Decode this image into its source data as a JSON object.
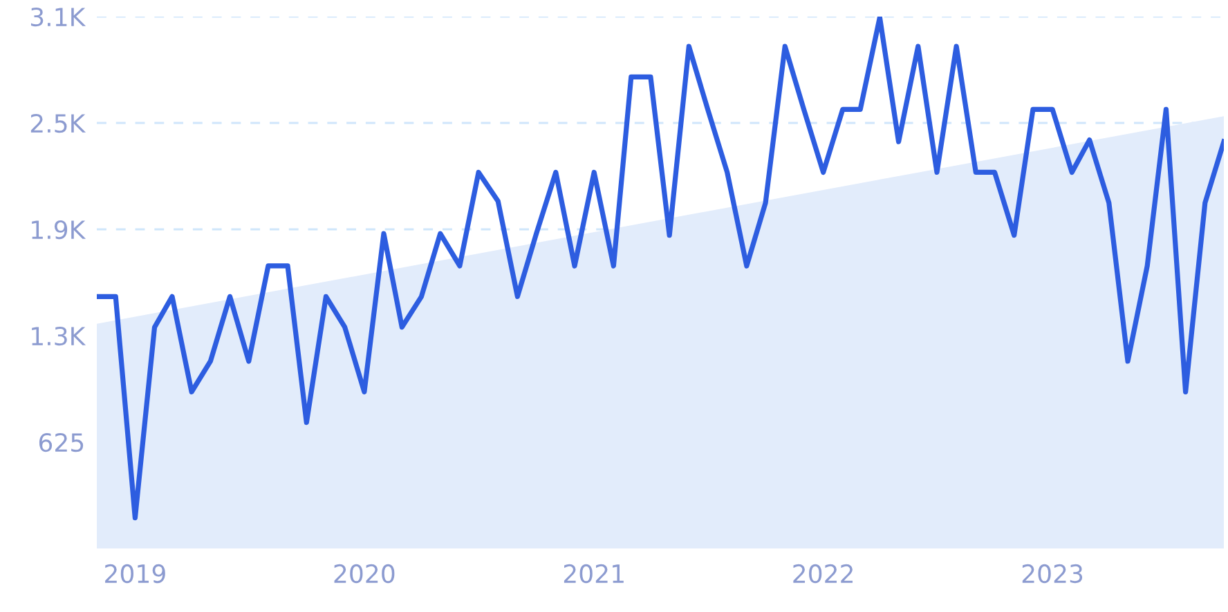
{
  "chart_data": {
    "type": "line",
    "x": [
      "2018-11",
      "2018-12",
      "2019-01",
      "2019-02",
      "2019-03",
      "2019-04",
      "2019-05",
      "2019-06",
      "2019-07",
      "2019-08",
      "2019-09",
      "2019-10",
      "2019-11",
      "2019-12",
      "2020-01",
      "2020-02",
      "2020-03",
      "2020-04",
      "2020-05",
      "2020-06",
      "2020-07",
      "2020-08",
      "2020-09",
      "2020-10",
      "2020-11",
      "2020-12",
      "2021-01",
      "2021-02",
      "2021-03",
      "2021-04",
      "2021-05",
      "2021-06",
      "2021-07",
      "2021-08",
      "2021-09",
      "2021-10",
      "2021-11",
      "2021-12",
      "2022-01",
      "2022-02",
      "2022-03",
      "2022-04",
      "2022-05",
      "2022-06",
      "2022-07",
      "2022-08",
      "2022-09",
      "2022-10",
      "2022-11",
      "2022-12",
      "2023-01",
      "2023-02",
      "2023-03",
      "2023-04",
      "2023-05",
      "2023-06",
      "2023-07",
      "2023-08",
      "2023-09",
      "2023-10"
    ],
    "series": [
      {
        "type": "area",
        "color": "#e2ecfb",
        "x": [
          "2018-11",
          "2023-10"
        ],
        "values": [
          1320,
          2540
        ]
      },
      {
        "color": "#2d5de0",
        "values": [
          1480,
          1480,
          180,
          1300,
          1480,
          920,
          1100,
          1480,
          1100,
          1660,
          1660,
          740,
          1480,
          1300,
          920,
          1850,
          1300,
          1480,
          1850,
          1660,
          2210,
          2040,
          1480,
          1850,
          2210,
          1660,
          2210,
          1660,
          2770,
          2770,
          1840,
          2950,
          2580,
          2210,
          1660,
          2030,
          2950,
          2580,
          2210,
          2580,
          2580,
          3120,
          2390,
          2950,
          2210,
          2950,
          2210,
          2210,
          1840,
          2580,
          2580,
          2210,
          2400,
          2030,
          1100,
          1660,
          2580,
          920,
          2030,
          2390
        ]
      }
    ],
    "xlim": [
      "2018-11",
      "2023-10"
    ],
    "xticks": [
      "2019",
      "2020",
      "2021",
      "2022",
      "2023"
    ],
    "ylim": [
      0,
      3125
    ],
    "yticks": [
      625,
      {
        "value": 1250,
        "label": "1.3K"
      },
      {
        "value": 1875,
        "label": "1.9K"
      },
      {
        "value": 2500,
        "label": "2.5K"
      },
      {
        "value": 3125,
        "label": "3.1K"
      }
    ],
    "grid": "y",
    "line_style": "solid",
    "marker": "none"
  }
}
